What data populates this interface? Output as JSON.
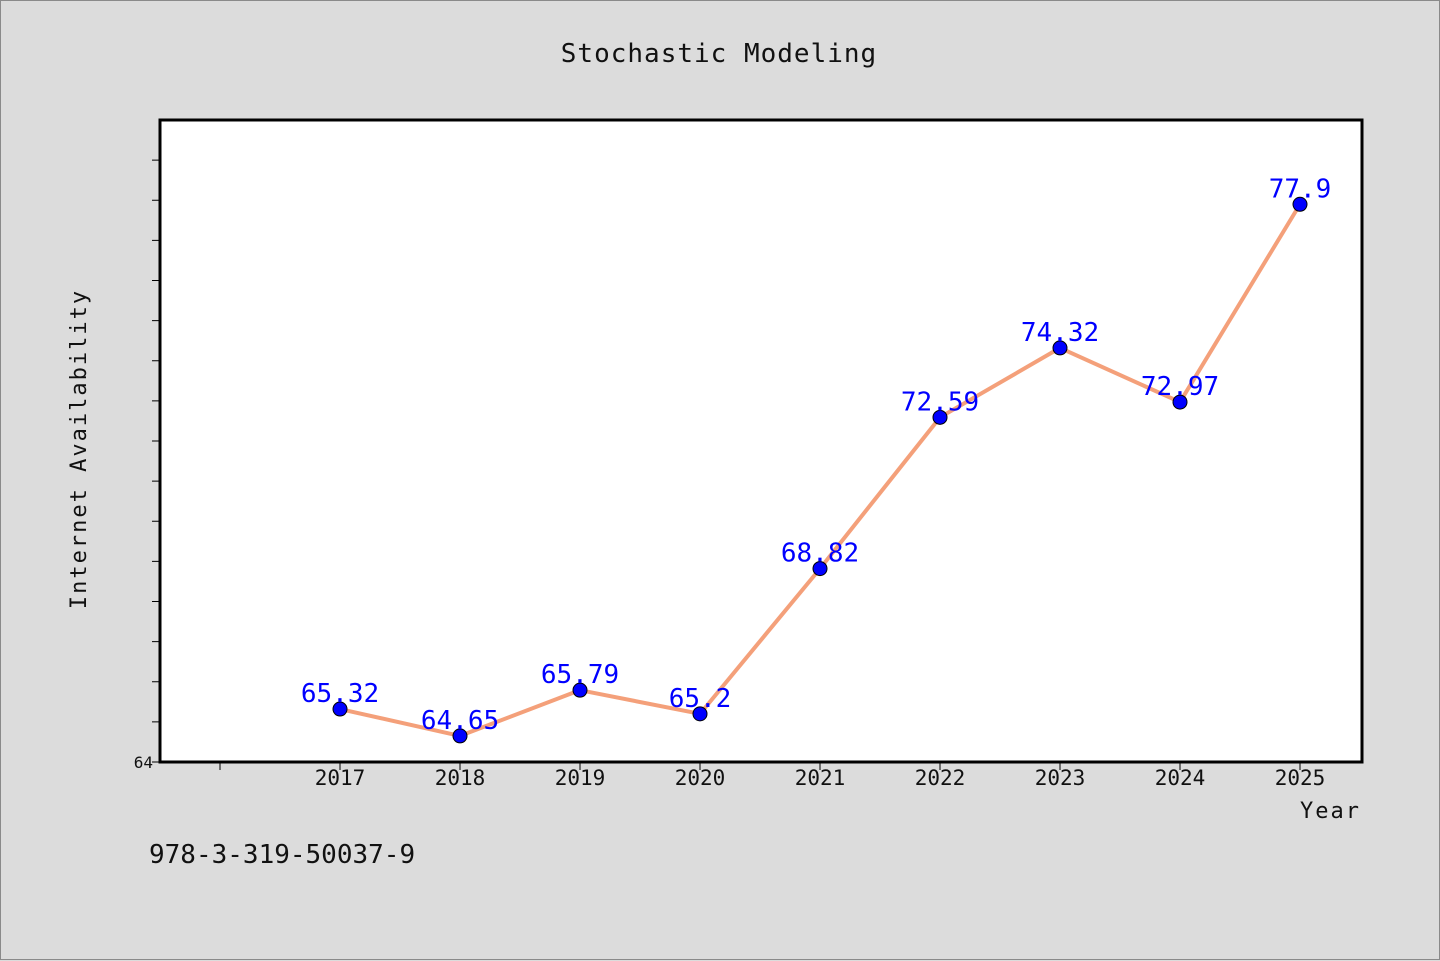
{
  "chart_data": {
    "type": "line",
    "title": "Stochastic Modeling",
    "xlabel": "Year",
    "ylabel": "Internet Availability",
    "categories": [
      "2017",
      "2018",
      "2019",
      "2020",
      "2021",
      "2022",
      "2023",
      "2024",
      "2025"
    ],
    "series": [
      {
        "values": [
          65.32,
          64.65,
          65.79,
          65.2,
          68.82,
          72.59,
          74.32,
          72.97,
          77.9
        ]
      }
    ],
    "data_labels": [
      "65.32",
      "64.65",
      "65.79",
      "65.2",
      "68.82",
      "72.59",
      "74.32",
      "72.97",
      "77.9"
    ],
    "y_tick_labels": [
      "64"
    ],
    "ylim": [
      64,
      80
    ],
    "line_color": "#f4a07a",
    "marker_color": "#0000ff",
    "label_color": "#0000ff",
    "grid": false,
    "legend": "none"
  },
  "footer": {
    "isbn": "978-3-319-50037-9"
  },
  "colors": {
    "background": "#dcdcdc",
    "plot_background": "#ffffff",
    "axis": "#000000"
  }
}
